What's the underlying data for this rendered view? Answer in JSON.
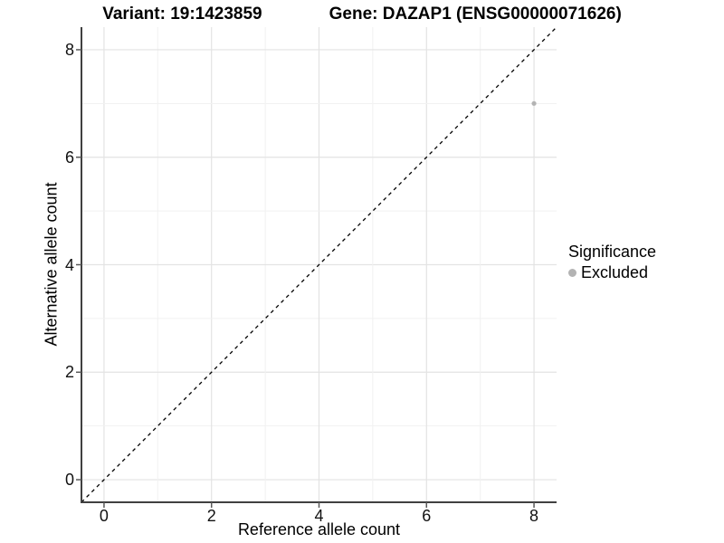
{
  "chart_data": {
    "type": "scatter",
    "title_parts": {
      "variant": "Variant: 19:1423859",
      "gene": "Gene: DAZAP1 (ENSG00000071626)"
    },
    "title": "Variant: 19:1423859        Gene: DAZAP1 (ENSG00000071626)",
    "xlabel": "Reference allele count",
    "ylabel": "Alternative allele count",
    "xlim": [
      -0.42,
      8.42
    ],
    "ylim": [
      -0.42,
      8.42
    ],
    "x_ticks": [
      0,
      2,
      4,
      6,
      8
    ],
    "y_ticks": [
      0,
      2,
      4,
      6,
      8
    ],
    "grid": {
      "show": true,
      "interval": 1,
      "major_every": 2,
      "major_color": "#e3e3e3",
      "minor_color": "#f1f1f1"
    },
    "series": [
      {
        "name": "Excluded",
        "color": "#b3b3b3",
        "point_radius": 2.6,
        "points": [
          [
            8,
            7
          ]
        ]
      }
    ],
    "reference_line": {
      "kind": "identity",
      "equation": "y = x",
      "style": "dashed",
      "color": "#000000"
    },
    "legend": {
      "position": "right",
      "title": "Significance",
      "entries": [
        {
          "label": "Excluded",
          "color": "#b3b3b3"
        }
      ]
    },
    "style": {
      "axis_line_color": "#404040",
      "tick_mark_color": "#595959",
      "text_color": "#000000",
      "background": "#ffffff"
    }
  }
}
